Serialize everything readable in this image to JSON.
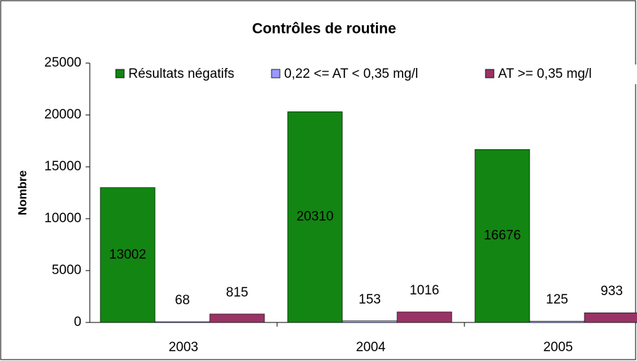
{
  "chart_data": {
    "type": "bar",
    "title": "Contrôles de routine",
    "y_label": "Nombre",
    "categories": [
      "2003",
      "2004",
      "2005"
    ],
    "series": [
      {
        "name": "Résultats négatifs",
        "color": "#138513",
        "values": [
          13002,
          20310,
          16676
        ]
      },
      {
        "name": "0,22 <= AT < 0,35 mg/l",
        "color": "#9999ff",
        "values": [
          68,
          153,
          125
        ]
      },
      {
        "name": "AT >= 0,35 mg/l",
        "color": "#993366",
        "values": [
          815,
          1016,
          933
        ]
      }
    ],
    "ylim": [
      0,
      25000
    ],
    "yticks": [
      0,
      5000,
      10000,
      15000,
      20000,
      25000
    ],
    "grid": false,
    "legend": "top"
  }
}
